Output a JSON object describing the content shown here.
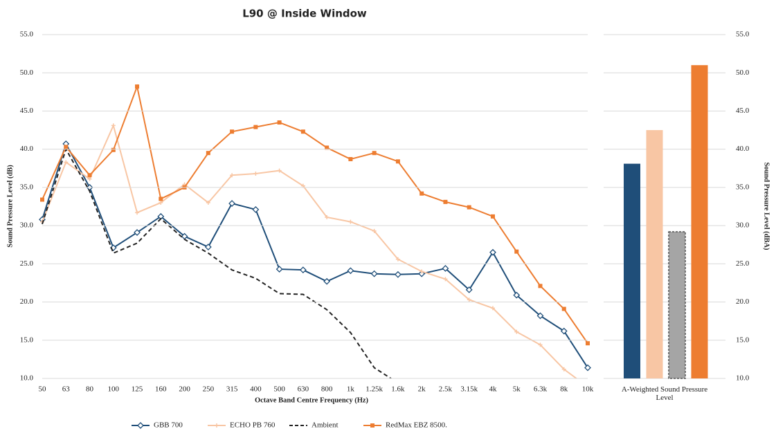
{
  "chart_data": [
    {
      "type": "line",
      "title": "L90 @ Inside Window",
      "x_label": "Octave Band Centre Frequency (Hz)",
      "y_label": "Sound Pressure Level (dB)",
      "categories": [
        "50",
        "63",
        "80",
        "100",
        "125",
        "160",
        "200",
        "250",
        "315",
        "400",
        "500",
        "630",
        "800",
        "1k",
        "1.25k",
        "1.6k",
        "2k",
        "2.5k",
        "3.15k",
        "4k",
        "5k",
        "6.3k",
        "8k",
        "10k"
      ],
      "ylim": [
        10,
        55
      ],
      "yticks": [
        {
          "value": 10,
          "label": "10.0"
        },
        {
          "value": 15,
          "label": "15.0"
        },
        {
          "value": 20,
          "label": "20.0"
        },
        {
          "value": 25,
          "label": "25.0"
        },
        {
          "value": 30,
          "label": "30.0"
        },
        {
          "value": 35,
          "label": "35.0"
        },
        {
          "value": 40,
          "label": "40.0"
        },
        {
          "value": 45,
          "label": "45.0"
        },
        {
          "value": 50,
          "label": "50.0"
        },
        {
          "value": 55,
          "label": "55.0"
        }
      ],
      "grid": true,
      "legend": "bottom",
      "series": [
        {
          "name": "GBB 700",
          "color": "#1f4e79",
          "marker": "diamond-open",
          "dash": false,
          "values": [
            30.8,
            40.7,
            35.0,
            27.1,
            29.1,
            31.2,
            28.6,
            27.2,
            32.9,
            32.1,
            24.3,
            24.2,
            22.7,
            24.1,
            23.7,
            23.6,
            23.7,
            24.4,
            21.6,
            26.5,
            20.9,
            18.2,
            16.2,
            11.4
          ]
        },
        {
          "name": "ECHO PB 760",
          "color": "#f8c6a4",
          "marker": "plus",
          "dash": false,
          "values": [
            30.5,
            38.3,
            36.1,
            43.1,
            31.7,
            33.0,
            35.4,
            33.0,
            36.6,
            36.8,
            37.2,
            35.2,
            31.1,
            30.5,
            29.3,
            25.6,
            24.0,
            23.0,
            20.3,
            19.2,
            16.1,
            14.4,
            11.2,
            8.9
          ]
        },
        {
          "name": "Ambient",
          "color": "#222222",
          "marker": "none",
          "dash": true,
          "values": [
            30.2,
            40.0,
            34.5,
            26.4,
            27.7,
            30.9,
            28.2,
            26.4,
            24.2,
            23.1,
            21.1,
            21.0,
            19.0,
            16.0,
            11.4,
            9.4,
            null,
            null,
            null,
            null,
            null,
            null,
            null,
            null
          ]
        },
        {
          "name": "RedMax EBZ 8500.",
          "color": "#ed7d31",
          "marker": "square",
          "dash": false,
          "values": [
            33.4,
            40.3,
            36.6,
            39.9,
            48.2,
            33.5,
            35.0,
            39.5,
            42.3,
            42.9,
            43.5,
            42.3,
            40.2,
            38.7,
            39.5,
            38.4,
            34.2,
            33.1,
            32.4,
            31.2,
            26.6,
            22.1,
            19.1,
            14.6
          ]
        }
      ]
    },
    {
      "type": "bar",
      "y_label": "Sound Pressure Level (dBA)",
      "y_axis_side": "right",
      "categories": [
        "A-Weighted Sound Pressure Level"
      ],
      "ylim": [
        10,
        55
      ],
      "yticks": [
        {
          "value": 10,
          "label": "10.0"
        },
        {
          "value": 15,
          "label": "15.0"
        },
        {
          "value": 20,
          "label": "20.0"
        },
        {
          "value": 25,
          "label": "25.0"
        },
        {
          "value": 30,
          "label": "30.0"
        },
        {
          "value": 35,
          "label": "35.0"
        },
        {
          "value": 40,
          "label": "40.0"
        },
        {
          "value": 45,
          "label": "45.0"
        },
        {
          "value": 50,
          "label": "50.0"
        },
        {
          "value": 55,
          "label": "55.0"
        }
      ],
      "grid": true,
      "series": [
        {
          "color": "#1f4e79",
          "dash": false,
          "values": [
            38.1
          ]
        },
        {
          "color": "#f8c6a4",
          "dash": false,
          "values": [
            42.5
          ]
        },
        {
          "color": "#a5a5a5",
          "dash": true,
          "values": [
            29.2
          ]
        },
        {
          "color": "#ed7d31",
          "dash": false,
          "values": [
            51.0
          ]
        }
      ]
    }
  ]
}
